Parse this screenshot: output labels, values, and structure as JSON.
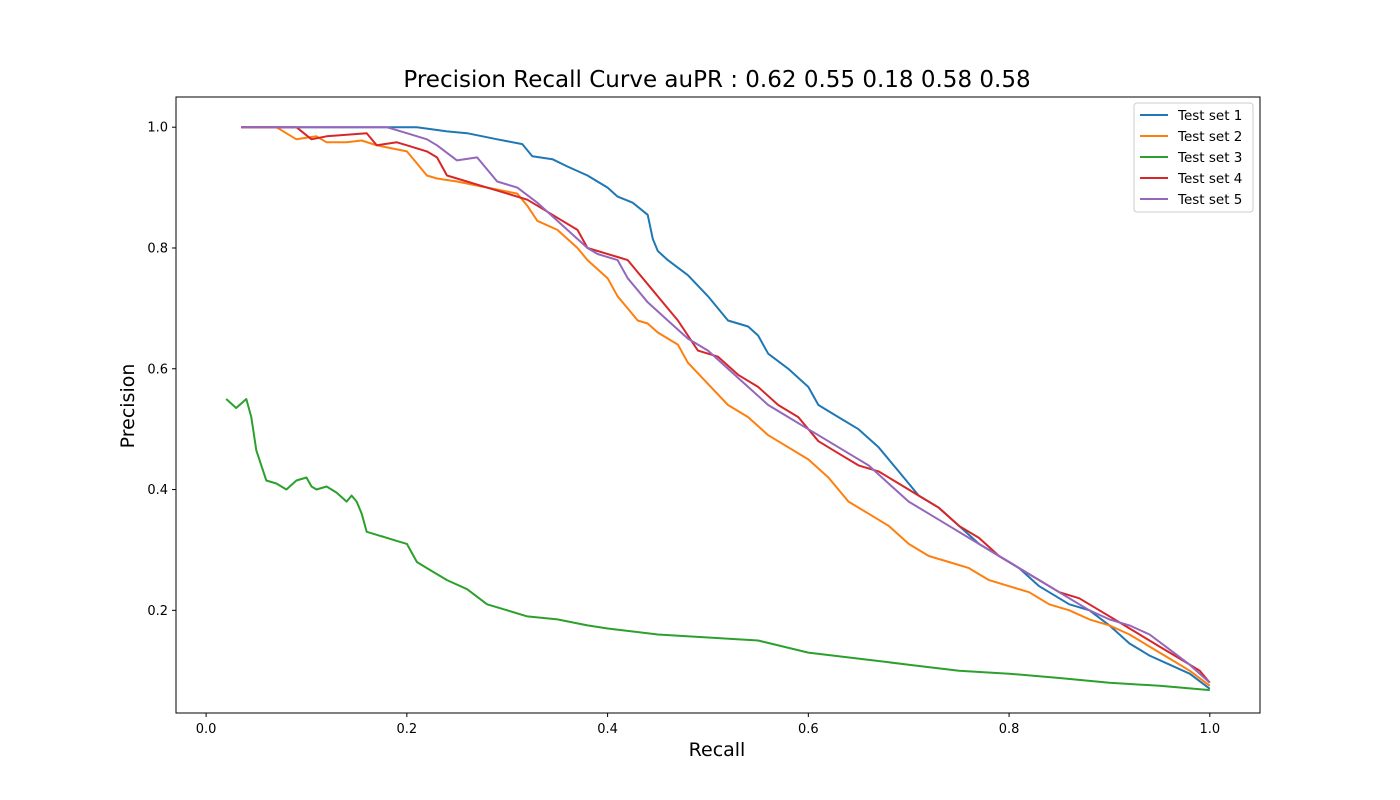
{
  "chart_data": {
    "type": "line",
    "title": "Precision Recall Curve auPR :  0.62 0.55 0.18 0.58 0.58",
    "xlabel": "Recall",
    "ylabel": "Precision",
    "xlim": [
      -0.03,
      1.05
    ],
    "ylim": [
      0.03,
      1.05
    ],
    "xticks": [
      "0.0",
      "0.2",
      "0.4",
      "0.6",
      "0.8",
      "1.0"
    ],
    "yticks": [
      "0.2",
      "0.4",
      "0.6",
      "0.8",
      "1.0"
    ],
    "grid": false,
    "legend_position": "top-right",
    "series": [
      {
        "name": "Test set 1",
        "color": "#1f77b4",
        "x": [
          0.035,
          0.21,
          0.24,
          0.26,
          0.29,
          0.315,
          0.325,
          0.345,
          0.36,
          0.38,
          0.4,
          0.41,
          0.425,
          0.44,
          0.445,
          0.45,
          0.46,
          0.48,
          0.5,
          0.51,
          0.52,
          0.54,
          0.55,
          0.56,
          0.58,
          0.6,
          0.61,
          0.63,
          0.65,
          0.67,
          0.69,
          0.71,
          0.73,
          0.75,
          0.77,
          0.79,
          0.81,
          0.83,
          0.86,
          0.88,
          0.9,
          0.92,
          0.94,
          0.96,
          0.98,
          1.0
        ],
        "y": [
          1.0,
          1.0,
          0.993,
          0.99,
          0.98,
          0.972,
          0.952,
          0.947,
          0.935,
          0.92,
          0.9,
          0.885,
          0.875,
          0.855,
          0.815,
          0.795,
          0.78,
          0.755,
          0.72,
          0.7,
          0.68,
          0.67,
          0.655,
          0.625,
          0.6,
          0.57,
          0.54,
          0.52,
          0.5,
          0.47,
          0.43,
          0.39,
          0.37,
          0.34,
          0.31,
          0.29,
          0.27,
          0.24,
          0.21,
          0.2,
          0.175,
          0.145,
          0.125,
          0.11,
          0.095,
          0.07
        ]
      },
      {
        "name": "Test set 2",
        "color": "#ff7f0e",
        "x": [
          0.035,
          0.07,
          0.09,
          0.11,
          0.12,
          0.14,
          0.155,
          0.17,
          0.2,
          0.21,
          0.22,
          0.23,
          0.25,
          0.28,
          0.31,
          0.32,
          0.33,
          0.35,
          0.37,
          0.38,
          0.4,
          0.41,
          0.42,
          0.43,
          0.44,
          0.45,
          0.47,
          0.48,
          0.5,
          0.52,
          0.54,
          0.56,
          0.58,
          0.6,
          0.62,
          0.64,
          0.66,
          0.68,
          0.7,
          0.72,
          0.74,
          0.76,
          0.78,
          0.8,
          0.82,
          0.84,
          0.86,
          0.88,
          0.9,
          0.92,
          0.94,
          0.96,
          0.98,
          1.0
        ],
        "y": [
          1.0,
          1.0,
          0.98,
          0.985,
          0.975,
          0.975,
          0.978,
          0.97,
          0.96,
          0.94,
          0.92,
          0.915,
          0.91,
          0.9,
          0.89,
          0.87,
          0.845,
          0.83,
          0.8,
          0.78,
          0.75,
          0.72,
          0.7,
          0.68,
          0.675,
          0.66,
          0.64,
          0.61,
          0.575,
          0.54,
          0.52,
          0.49,
          0.47,
          0.45,
          0.42,
          0.38,
          0.36,
          0.34,
          0.31,
          0.29,
          0.28,
          0.27,
          0.25,
          0.24,
          0.23,
          0.21,
          0.2,
          0.185,
          0.175,
          0.16,
          0.14,
          0.12,
          0.1,
          0.075
        ]
      },
      {
        "name": "Test set 3",
        "color": "#2ca02c",
        "x": [
          0.02,
          0.03,
          0.04,
          0.045,
          0.05,
          0.055,
          0.06,
          0.07,
          0.08,
          0.09,
          0.1,
          0.105,
          0.11,
          0.12,
          0.13,
          0.14,
          0.145,
          0.15,
          0.155,
          0.16,
          0.17,
          0.19,
          0.2,
          0.21,
          0.22,
          0.24,
          0.26,
          0.28,
          0.3,
          0.32,
          0.35,
          0.38,
          0.4,
          0.45,
          0.5,
          0.55,
          0.6,
          0.65,
          0.7,
          0.75,
          0.8,
          0.85,
          0.9,
          0.95,
          1.0
        ],
        "y": [
          0.55,
          0.535,
          0.55,
          0.52,
          0.465,
          0.44,
          0.415,
          0.41,
          0.4,
          0.415,
          0.42,
          0.405,
          0.4,
          0.405,
          0.395,
          0.38,
          0.39,
          0.38,
          0.36,
          0.33,
          0.325,
          0.315,
          0.31,
          0.28,
          0.27,
          0.25,
          0.235,
          0.21,
          0.2,
          0.19,
          0.185,
          0.175,
          0.17,
          0.16,
          0.155,
          0.15,
          0.13,
          0.12,
          0.11,
          0.1,
          0.095,
          0.088,
          0.08,
          0.075,
          0.068
        ]
      },
      {
        "name": "Test set 4",
        "color": "#d62728",
        "x": [
          0.035,
          0.09,
          0.105,
          0.12,
          0.16,
          0.17,
          0.19,
          0.2,
          0.22,
          0.23,
          0.24,
          0.25,
          0.27,
          0.3,
          0.32,
          0.34,
          0.35,
          0.37,
          0.38,
          0.39,
          0.41,
          0.42,
          0.44,
          0.46,
          0.47,
          0.49,
          0.51,
          0.53,
          0.55,
          0.57,
          0.59,
          0.61,
          0.63,
          0.65,
          0.67,
          0.69,
          0.71,
          0.73,
          0.75,
          0.77,
          0.79,
          0.81,
          0.83,
          0.85,
          0.87,
          0.89,
          0.91,
          0.93,
          0.95,
          0.97,
          0.99,
          1.0
        ],
        "y": [
          1.0,
          1.0,
          0.98,
          0.985,
          0.99,
          0.97,
          0.975,
          0.97,
          0.96,
          0.95,
          0.92,
          0.915,
          0.905,
          0.89,
          0.88,
          0.86,
          0.85,
          0.83,
          0.8,
          0.795,
          0.785,
          0.78,
          0.74,
          0.7,
          0.68,
          0.63,
          0.62,
          0.59,
          0.57,
          0.54,
          0.52,
          0.48,
          0.46,
          0.44,
          0.43,
          0.41,
          0.39,
          0.37,
          0.34,
          0.32,
          0.29,
          0.27,
          0.25,
          0.23,
          0.22,
          0.2,
          0.18,
          0.16,
          0.14,
          0.12,
          0.1,
          0.08
        ]
      },
      {
        "name": "Test set 5",
        "color": "#9467bd",
        "x": [
          0.035,
          0.18,
          0.2,
          0.22,
          0.23,
          0.25,
          0.27,
          0.29,
          0.31,
          0.33,
          0.34,
          0.36,
          0.38,
          0.39,
          0.41,
          0.42,
          0.44,
          0.46,
          0.48,
          0.5,
          0.52,
          0.54,
          0.56,
          0.58,
          0.6,
          0.62,
          0.64,
          0.66,
          0.68,
          0.7,
          0.72,
          0.74,
          0.76,
          0.78,
          0.8,
          0.82,
          0.84,
          0.86,
          0.88,
          0.9,
          0.92,
          0.94,
          0.96,
          0.98,
          1.0
        ],
        "y": [
          1.0,
          1.0,
          0.99,
          0.98,
          0.97,
          0.945,
          0.95,
          0.91,
          0.9,
          0.875,
          0.86,
          0.83,
          0.8,
          0.79,
          0.78,
          0.75,
          0.71,
          0.68,
          0.65,
          0.63,
          0.6,
          0.57,
          0.54,
          0.52,
          0.5,
          0.48,
          0.46,
          0.44,
          0.41,
          0.38,
          0.36,
          0.34,
          0.32,
          0.3,
          0.28,
          0.26,
          0.24,
          0.22,
          0.2,
          0.185,
          0.175,
          0.16,
          0.135,
          0.11,
          0.08
        ]
      }
    ]
  }
}
